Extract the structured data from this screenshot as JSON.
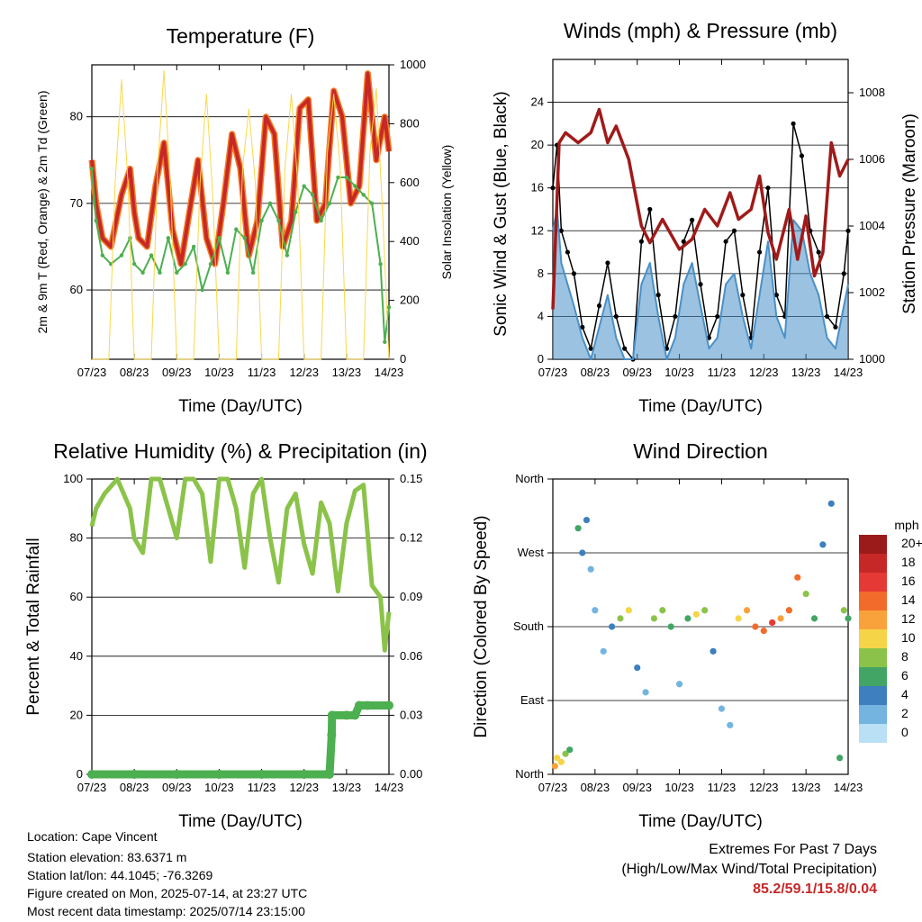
{
  "x_ticks": [
    "07/23",
    "08/23",
    "09/23",
    "10/23",
    "11/23",
    "12/23",
    "13/23",
    "14/23"
  ],
  "colors": {
    "red_temp": "#c62828",
    "orange_temp": "#f57c20",
    "green_td": "#4caf50",
    "yellow_solar": "#f9d84a",
    "maroon_pressure": "#a01a1a",
    "blue_wind": "#4a90c8",
    "black_gust": "#000000",
    "light_green_rh": "#8bc34a",
    "green_precip": "#4caf50"
  },
  "chart_data": [
    {
      "type": "line",
      "title": "Temperature (F)",
      "xlabel": "Time (Day/UTC)",
      "ylabel": "2m & 9m T (Red, Orange) & 2m Td (Green)",
      "ylabel_right": "Solar Insolation (Yellow)",
      "ylim": [
        52,
        86
      ],
      "ylim_right": [
        0,
        1000
      ],
      "yticks": [
        60,
        70,
        80
      ],
      "yticks_right": [
        0,
        200,
        400,
        600,
        800,
        1000
      ],
      "x_unit": "days",
      "series": [
        {
          "name": "2m T",
          "color": "#c62828",
          "x": [
            0,
            0.1,
            0.25,
            0.45,
            0.7,
            0.9,
            1.0,
            1.1,
            1.3,
            1.5,
            1.7,
            1.9,
            2.1,
            2.3,
            2.5,
            2.7,
            2.9,
            3.1,
            3.3,
            3.5,
            3.7,
            3.9,
            4.1,
            4.3,
            4.5,
            4.7,
            4.9,
            5.1,
            5.3,
            5.5,
            5.7,
            5.9,
            6.1,
            6.3,
            6.5,
            6.7,
            6.9,
            7.0
          ],
          "y": [
            75,
            70,
            66,
            65,
            71,
            74,
            69,
            66,
            65,
            72,
            77,
            67,
            63,
            69,
            75,
            66,
            63,
            70,
            78,
            74,
            64,
            68,
            80,
            78,
            65,
            68,
            81,
            82,
            68,
            70,
            83,
            80,
            70,
            72,
            85,
            75,
            80,
            76
          ]
        },
        {
          "name": "2m Td",
          "color": "#4caf50",
          "x": [
            0,
            0.1,
            0.25,
            0.45,
            0.7,
            0.9,
            1.0,
            1.2,
            1.4,
            1.6,
            1.8,
            2.0,
            2.2,
            2.4,
            2.6,
            2.8,
            3.0,
            3.2,
            3.4,
            3.6,
            3.8,
            4.0,
            4.2,
            4.4,
            4.6,
            4.8,
            5.0,
            5.2,
            5.4,
            5.6,
            5.8,
            6.0,
            6.2,
            6.4,
            6.6,
            6.8,
            6.9,
            7.0
          ],
          "y": [
            74,
            68,
            64,
            63,
            64,
            66,
            63,
            62,
            64,
            62,
            66,
            62,
            63,
            65,
            60,
            63,
            66,
            62,
            67,
            66,
            62,
            68,
            70,
            68,
            64,
            69,
            72,
            71,
            68,
            70,
            73,
            73,
            72,
            71,
            70,
            63,
            54,
            58
          ]
        },
        {
          "name": "Solar Insolation",
          "color": "#f9d84a",
          "axis": "right",
          "x": [
            0,
            0.4,
            0.55,
            0.7,
            0.85,
            1.0,
            1.4,
            1.55,
            1.7,
            1.85,
            2.0,
            2.4,
            2.55,
            2.7,
            2.85,
            3.0,
            3.4,
            3.55,
            3.7,
            3.85,
            4.0,
            4.4,
            4.55,
            4.7,
            4.85,
            5.0,
            5.4,
            5.55,
            5.7,
            5.85,
            6.0,
            6.4,
            6.55,
            6.7,
            6.85,
            7.0
          ],
          "y": [
            0,
            0,
            600,
            950,
            600,
            0,
            0,
            650,
            980,
            600,
            0,
            0,
            600,
            900,
            550,
            0,
            0,
            650,
            850,
            600,
            0,
            0,
            650,
            900,
            600,
            0,
            0,
            700,
            900,
            650,
            0,
            0,
            700,
            920,
            500,
            0
          ]
        }
      ]
    },
    {
      "type": "scatter",
      "title": "Winds (mph) & Pressure (mb)",
      "xlabel": "Time (Day/UTC)",
      "ylabel": "Sonic Wind & Gust (Blue, Black)",
      "ylabel_right": "Station Pressure (Maroon)",
      "ylim": [
        0,
        28
      ],
      "ylim_right": [
        1000,
        1009
      ],
      "yticks": [
        0,
        4,
        8,
        12,
        16,
        20,
        24
      ],
      "yticks_right": [
        1000,
        1002,
        1004,
        1006,
        1008
      ],
      "x_unit": "days",
      "series": [
        {
          "name": "Gust",
          "color": "#000000",
          "x": [
            0,
            0.1,
            0.2,
            0.35,
            0.5,
            0.7,
            0.9,
            1.1,
            1.3,
            1.5,
            1.7,
            1.9,
            2.1,
            2.3,
            2.5,
            2.7,
            2.9,
            3.1,
            3.3,
            3.5,
            3.7,
            3.9,
            4.1,
            4.3,
            4.5,
            4.7,
            4.9,
            5.1,
            5.3,
            5.5,
            5.7,
            5.9,
            6.1,
            6.3,
            6.5,
            6.7,
            6.9,
            7.0
          ],
          "y": [
            16,
            20,
            12,
            10,
            8,
            3,
            1,
            5,
            9,
            4,
            1,
            0,
            11,
            14,
            6,
            1,
            4,
            11,
            13,
            7,
            2,
            4,
            11,
            12,
            6,
            2,
            10,
            16,
            6,
            4,
            22,
            19,
            12,
            10,
            4,
            3,
            8,
            12
          ]
        },
        {
          "name": "Sonic Wind",
          "color": "#4a90c8",
          "x": [
            0,
            0.1,
            0.2,
            0.35,
            0.5,
            0.7,
            0.9,
            1.1,
            1.3,
            1.5,
            1.7,
            1.9,
            2.1,
            2.3,
            2.5,
            2.7,
            2.9,
            3.1,
            3.3,
            3.5,
            3.7,
            3.9,
            4.1,
            4.3,
            4.5,
            4.7,
            4.9,
            5.1,
            5.3,
            5.5,
            5.7,
            5.9,
            6.1,
            6.3,
            6.5,
            6.7,
            6.9,
            7.0
          ],
          "y": [
            12,
            14,
            9,
            7,
            5,
            2,
            0,
            3,
            6,
            2,
            0,
            0,
            7,
            9,
            4,
            0,
            2,
            7,
            9,
            5,
            1,
            2,
            7,
            8,
            4,
            1,
            6,
            11,
            4,
            2,
            13,
            12,
            8,
            6,
            2,
            1,
            5,
            7
          ]
        },
        {
          "name": "Station Pressure",
          "color": "#a01a1a",
          "axis": "right",
          "x": [
            0,
            0.15,
            0.3,
            0.6,
            0.9,
            1.1,
            1.3,
            1.5,
            1.8,
            2.1,
            2.3,
            2.6,
            3.0,
            3.3,
            3.6,
            3.9,
            4.2,
            4.4,
            4.7,
            4.9,
            5.1,
            5.3,
            5.6,
            5.8,
            6.0,
            6.2,
            6.4,
            6.6,
            6.8,
            7.0
          ],
          "y": [
            1001.5,
            1006.5,
            1006.8,
            1006.5,
            1006.8,
            1007.5,
            1006.5,
            1007.0,
            1006.0,
            1004.0,
            1003.5,
            1004.2,
            1003.3,
            1003.6,
            1004.5,
            1004.0,
            1005.0,
            1004.2,
            1004.5,
            1005.5,
            1003.8,
            1003.0,
            1004.5,
            1003.0,
            1004.3,
            1002.5,
            1003.2,
            1006.5,
            1005.5,
            1006.0
          ]
        }
      ]
    },
    {
      "type": "line",
      "title": "Relative Humidity (%) & Precipitation (in)",
      "xlabel": "Time (Day/UTC)",
      "ylabel": "Percent & Total Rainfall",
      "ylim": [
        0,
        100
      ],
      "ylim_right": [
        0,
        0.15
      ],
      "yticks": [
        0,
        20,
        40,
        60,
        80,
        100
      ],
      "yticks_right": [
        "0.00",
        "0.03",
        "0.06",
        "0.09",
        "0.12",
        "0.15"
      ],
      "x_unit": "days",
      "series": [
        {
          "name": "Relative Humidity",
          "color": "#8bc34a",
          "x": [
            0,
            0.1,
            0.3,
            0.6,
            0.9,
            1.0,
            1.2,
            1.4,
            1.6,
            1.8,
            2.0,
            2.2,
            2.4,
            2.6,
            2.8,
            3.0,
            3.2,
            3.4,
            3.6,
            3.8,
            4.0,
            4.2,
            4.4,
            4.6,
            4.8,
            5.0,
            5.2,
            5.4,
            5.6,
            5.8,
            6.0,
            6.2,
            6.4,
            6.6,
            6.8,
            6.9,
            7.0
          ],
          "y": [
            84,
            90,
            95,
            100,
            90,
            80,
            75,
            100,
            100,
            90,
            80,
            100,
            100,
            95,
            72,
            100,
            100,
            90,
            70,
            95,
            100,
            80,
            65,
            90,
            95,
            78,
            68,
            92,
            85,
            62,
            85,
            96,
            98,
            64,
            60,
            42,
            55
          ]
        },
        {
          "name": "Total Rainfall",
          "color": "#4caf50",
          "axis": "right",
          "x": [
            0,
            1,
            2,
            3,
            4,
            5,
            5.6,
            5.65,
            5.66,
            6.0,
            6.2,
            6.3,
            6.5,
            7.0
          ],
          "y": [
            0,
            0,
            0,
            0,
            0,
            0,
            0,
            0.02,
            0.03,
            0.03,
            0.03,
            0.035,
            0.035,
            0.035
          ]
        }
      ]
    },
    {
      "type": "scatter",
      "title": "Wind Direction",
      "xlabel": "Time (Day/UTC)",
      "ylabel": "Direction (Colored By Speed)",
      "yticks": [
        "North",
        "East",
        "South",
        "West",
        "North"
      ],
      "ylim": [
        0,
        360
      ],
      "x_unit": "days",
      "points": [
        {
          "x": 0.05,
          "y": 10,
          "s": 12
        },
        {
          "x": 0.1,
          "y": 20,
          "s": 10
        },
        {
          "x": 0.2,
          "y": 15,
          "s": 9
        },
        {
          "x": 0.3,
          "y": 25,
          "s": 7
        },
        {
          "x": 0.4,
          "y": 30,
          "s": 6
        },
        {
          "x": 0.6,
          "y": 300,
          "s": 5
        },
        {
          "x": 0.7,
          "y": 270,
          "s": 4
        },
        {
          "x": 0.8,
          "y": 310,
          "s": 3
        },
        {
          "x": 0.9,
          "y": 250,
          "s": 2
        },
        {
          "x": 1.0,
          "y": 200,
          "s": 1
        },
        {
          "x": 1.2,
          "y": 150,
          "s": 2
        },
        {
          "x": 1.4,
          "y": 180,
          "s": 3
        },
        {
          "x": 1.6,
          "y": 190,
          "s": 8
        },
        {
          "x": 1.8,
          "y": 200,
          "s": 9
        },
        {
          "x": 2.0,
          "y": 130,
          "s": 4
        },
        {
          "x": 2.2,
          "y": 100,
          "s": 2
        },
        {
          "x": 2.4,
          "y": 190,
          "s": 7
        },
        {
          "x": 2.6,
          "y": 200,
          "s": 8
        },
        {
          "x": 2.8,
          "y": 180,
          "s": 5
        },
        {
          "x": 3.0,
          "y": 110,
          "s": 2
        },
        {
          "x": 3.2,
          "y": 190,
          "s": 6
        },
        {
          "x": 3.4,
          "y": 195,
          "s": 9
        },
        {
          "x": 3.6,
          "y": 200,
          "s": 8
        },
        {
          "x": 3.8,
          "y": 150,
          "s": 3
        },
        {
          "x": 4.0,
          "y": 80,
          "s": 2
        },
        {
          "x": 4.2,
          "y": 60,
          "s": 1
        },
        {
          "x": 4.4,
          "y": 190,
          "s": 10
        },
        {
          "x": 4.6,
          "y": 200,
          "s": 11
        },
        {
          "x": 4.8,
          "y": 180,
          "s": 13
        },
        {
          "x": 5.0,
          "y": 175,
          "s": 14
        },
        {
          "x": 5.2,
          "y": 185,
          "s": 15
        },
        {
          "x": 5.4,
          "y": 190,
          "s": 12
        },
        {
          "x": 5.6,
          "y": 200,
          "s": 13
        },
        {
          "x": 5.8,
          "y": 240,
          "s": 14
        },
        {
          "x": 6.0,
          "y": 220,
          "s": 8
        },
        {
          "x": 6.2,
          "y": 190,
          "s": 6
        },
        {
          "x": 6.4,
          "y": 280,
          "s": 4
        },
        {
          "x": 6.6,
          "y": 330,
          "s": 3
        },
        {
          "x": 6.8,
          "y": 20,
          "s": 5
        },
        {
          "x": 6.9,
          "y": 200,
          "s": 7
        },
        {
          "x": 7.0,
          "y": 190,
          "s": 6
        }
      ]
    }
  ],
  "wind_legend": {
    "title": "mph",
    "labels": [
      "20+",
      "18",
      "16",
      "14",
      "12",
      "10",
      "8",
      "6",
      "4",
      "2",
      "0"
    ],
    "colors": [
      "#9b1b1b",
      "#c62828",
      "#e53935",
      "#f26b2a",
      "#f9a23c",
      "#f5d547",
      "#8bc34a",
      "#43a565",
      "#3d7fbf",
      "#73b4e0",
      "#b9e0f5"
    ]
  },
  "footer": {
    "location": "Location: Cape Vincent",
    "elevation": "Station elevation: 83.6371 m",
    "latlon": "Station lat/lon: 44.1045; -76.3269",
    "created": "Figure created on Mon, 2025-07-14, at 23:27 UTC",
    "recent": "Most recent data timestamp: 2025/07/14 23:15:00"
  },
  "extremes": {
    "title": "Extremes For Past 7 Days",
    "subtitle": "(High/Low/Max Wind/Total Precipitation)",
    "values": "85.2/59.1/15.8/0.04"
  }
}
